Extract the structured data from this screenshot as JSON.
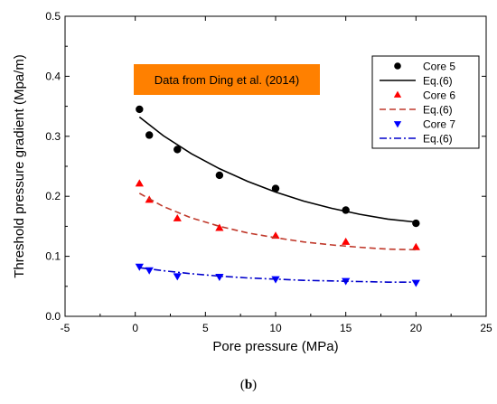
{
  "chart_data": {
    "type": "scatter",
    "xlabel": "Pore pressure (MPa)",
    "ylabel": "Threshold pressure gradient (Mpa/m)",
    "xlim": [
      -5,
      25
    ],
    "ylim": [
      0.0,
      0.5
    ],
    "xticks": [
      "-5",
      "0",
      "5",
      "10",
      "15",
      "20",
      "25"
    ],
    "yticks": [
      "0.0",
      "0.1",
      "0.2",
      "0.3",
      "0.4",
      "0.5"
    ],
    "annotation": "Data from Ding et al. (2014)",
    "annotation_color": "#ff8000",
    "legend_position": "top-right",
    "series": [
      {
        "name": "Core 5",
        "marker": "circle",
        "color": "#000000",
        "x": [
          0.3,
          1,
          3,
          6,
          10,
          15,
          20
        ],
        "y": [
          0.345,
          0.302,
          0.278,
          0.235,
          0.213,
          0.177,
          0.155
        ]
      },
      {
        "name": "Eq.(6)",
        "line": "solid",
        "color": "#000000",
        "x": [
          0.3,
          2,
          4,
          6,
          8,
          10,
          12,
          14,
          16,
          18,
          20
        ],
        "y": [
          0.332,
          0.301,
          0.271,
          0.246,
          0.225,
          0.207,
          0.192,
          0.18,
          0.17,
          0.162,
          0.157
        ]
      },
      {
        "name": "Core 6",
        "marker": "triangle-up",
        "color": "#ff0000",
        "x": [
          0.3,
          1,
          3,
          6,
          10,
          15,
          20
        ],
        "y": [
          0.221,
          0.194,
          0.163,
          0.147,
          0.134,
          0.124,
          0.115
        ]
      },
      {
        "name": "Eq.(6)",
        "line": "dashed",
        "color": "#c0392b",
        "x": [
          0.3,
          2,
          4,
          6,
          8,
          10,
          12,
          14,
          16,
          18,
          20
        ],
        "y": [
          0.205,
          0.183,
          0.164,
          0.15,
          0.139,
          0.131,
          0.124,
          0.119,
          0.115,
          0.112,
          0.111
        ]
      },
      {
        "name": "Core 7",
        "marker": "triangle-down",
        "color": "#0000ff",
        "x": [
          0.3,
          1,
          3,
          6,
          10,
          15,
          20
        ],
        "y": [
          0.083,
          0.077,
          0.067,
          0.066,
          0.062,
          0.059,
          0.056
        ]
      },
      {
        "name": "Eq.(6)",
        "line": "dashdot",
        "color": "#0000cc",
        "x": [
          0.3,
          2,
          4,
          6,
          8,
          10,
          12,
          14,
          16,
          18,
          20
        ],
        "y": [
          0.081,
          0.076,
          0.071,
          0.067,
          0.064,
          0.062,
          0.06,
          0.059,
          0.058,
          0.057,
          0.057
        ]
      }
    ]
  },
  "caption": {
    "open": "(",
    "letter": "b",
    "close": ")"
  }
}
